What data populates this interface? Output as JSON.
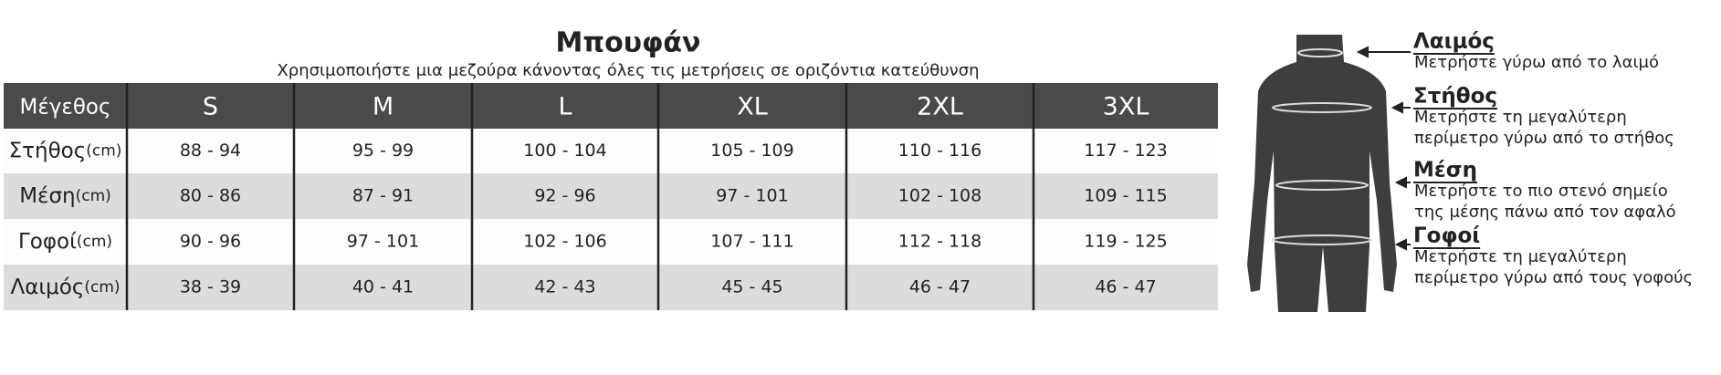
{
  "title": "Μπουφάν",
  "subtitle": "Χρησιμοποιήστε μια μεζούρα κάνοντας όλες τις μετρήσεις σε οριζόντια κατεύθυνση",
  "table": {
    "header": [
      "Μέγεθος",
      "S",
      "M",
      "L",
      "XL",
      "2XL",
      "3XL"
    ],
    "rows": [
      {
        "label": "Στήθος",
        "unit": "(cm)",
        "cells": [
          "88 - 94",
          "95 - 99",
          "100 - 104",
          "105 - 109",
          "110 - 116",
          "117 - 123"
        ]
      },
      {
        "label": "Μέση",
        "unit": "(cm)",
        "cells": [
          "80 - 86",
          "87 - 91",
          "92 - 96",
          "97 - 101",
          "102 - 108",
          "109 - 115"
        ]
      },
      {
        "label": "Γοφοί",
        "unit": "(cm)",
        "cells": [
          "90 - 96",
          "97 - 101",
          "102 - 106",
          "107 - 111",
          "112 - 118",
          "119 - 125"
        ]
      },
      {
        "label": "Λαιμός",
        "unit": "(cm)",
        "cells": [
          "38 - 39",
          "40 - 41",
          "42 - 43",
          "45 - 45",
          "46 - 47",
          "46 - 47"
        ]
      }
    ]
  },
  "guide": [
    {
      "title": "Λαιμός",
      "lines": [
        "Μετρήστε γύρω από το λαιμό"
      ]
    },
    {
      "title": "Στήθος",
      "lines": [
        "Μετρήστε τη μεγαλύτερη",
        "περίμετρο γύρω από το στήθος"
      ]
    },
    {
      "title": "Μέση",
      "lines": [
        "Μετρήστε το πιο στενό σημείο",
        "της μέσης πάνω από τον αφαλό"
      ]
    },
    {
      "title": "Γοφοί",
      "lines": [
        "Μετρήστε τη μεγαλύτερη",
        "περίμετρο γύρω από τους γοφούς"
      ]
    }
  ]
}
